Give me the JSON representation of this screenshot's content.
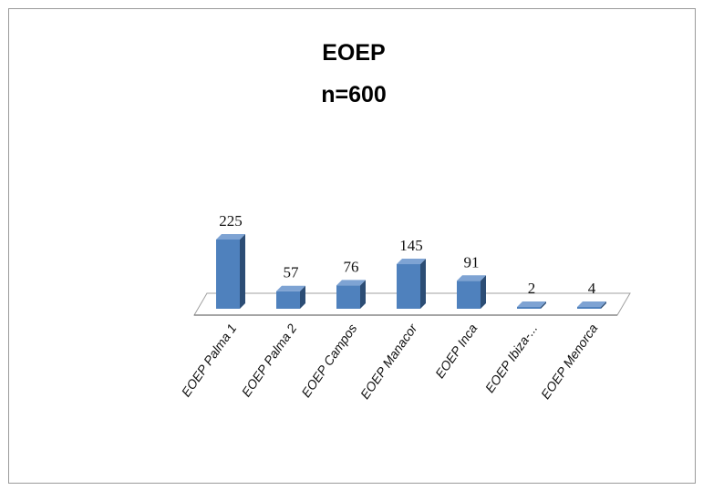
{
  "chart_data": {
    "type": "bar",
    "title": "EOEP",
    "subtitle": "n=600",
    "categories": [
      "EOEP Palma  1",
      "EOEP Palma  2",
      "EOEP Campos",
      "EOEP Manacor",
      "EOEP Inca",
      "EOEP Ibiza-...",
      "EOEP Menorca"
    ],
    "values": [
      225,
      57,
      76,
      145,
      91,
      2,
      4
    ],
    "data_labels": [
      "225",
      "57",
      "76",
      "145",
      "91",
      "2",
      "4"
    ],
    "xlabel": "",
    "ylabel": "",
    "ylim": [
      0,
      225
    ],
    "three_d": true,
    "grid": false,
    "legend": "none",
    "colors": {
      "bar_front": "#4f81bd",
      "bar_side": "#2c4d75",
      "bar_top": "#7ea3d3",
      "floor": "#ffffff",
      "floor_edge": "#a0a0a0"
    }
  }
}
